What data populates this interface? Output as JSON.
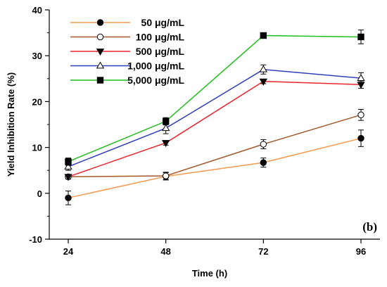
{
  "chart_data": {
    "type": "line",
    "xlabel": "Time (h)",
    "ylabel": "Yield Inhibition Rate (%)",
    "x": [
      24,
      48,
      72,
      96
    ],
    "xticks": [
      "24",
      "48",
      "72",
      "96"
    ],
    "ylim": [
      -10,
      40
    ],
    "yticks": [
      -10,
      0,
      10,
      20,
      30,
      40
    ],
    "panel_label": "(b)",
    "legend_position": "top-left",
    "grid": false,
    "series": [
      {
        "name": "50 μg/mL",
        "color": "#f59a4f",
        "marker": "filled-circle",
        "values": [
          -1.0,
          3.7,
          6.7,
          12.0
        ],
        "errors": [
          1.5,
          0.8,
          1.0,
          1.8
        ]
      },
      {
        "name": "100 μg/mL",
        "color": "#a2582a",
        "marker": "open-circle",
        "values": [
          3.6,
          3.8,
          10.7,
          17.1
        ],
        "errors": [
          0.5,
          0.8,
          1.0,
          1.2
        ]
      },
      {
        "name": "500 μg/mL",
        "color": "#e8252b",
        "marker": "filled-triangle-down",
        "values": [
          3.6,
          11.0,
          24.4,
          23.7
        ],
        "errors": [
          0.5,
          0.5,
          0.5,
          0.8
        ]
      },
      {
        "name": "1,000 μg/mL",
        "color": "#2e3fbf",
        "marker": "open-triangle-up",
        "values": [
          5.8,
          14.2,
          27.0,
          25.1
        ],
        "errors": [
          0.8,
          1.2,
          1.0,
          1.2
        ]
      },
      {
        "name": "5,000 μg/mL",
        "color": "#1fbf1f",
        "marker": "filled-square",
        "values": [
          6.9,
          15.7,
          34.4,
          34.1
        ],
        "errors": [
          0.8,
          0.8,
          0.5,
          1.5
        ]
      }
    ]
  }
}
